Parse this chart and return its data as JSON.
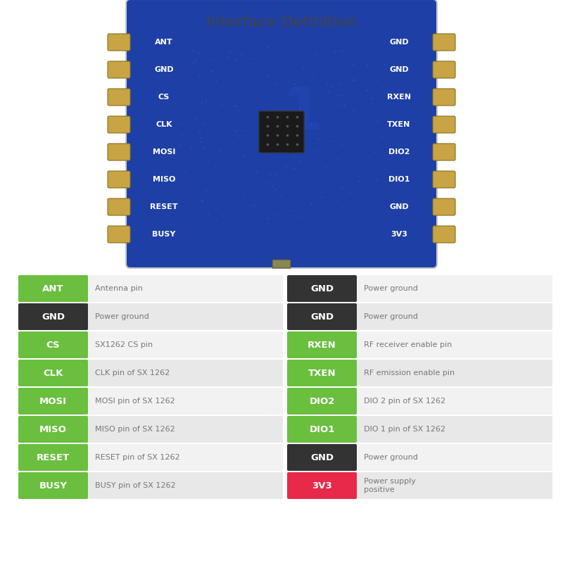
{
  "title": "Interface Definition",
  "title_fontsize": 16,
  "title_color": "#444444",
  "background_color": "#ffffff",
  "left_pins": [
    {
      "label": "ANT",
      "color": "#6abf3e",
      "text_color": "#ffffff",
      "desc": "Antenna pin"
    },
    {
      "label": "GND",
      "color": "#333333",
      "text_color": "#ffffff",
      "desc": "Power ground"
    },
    {
      "label": "CS",
      "color": "#6abf3e",
      "text_color": "#ffffff",
      "desc": "SX1262 CS pin"
    },
    {
      "label": "CLK",
      "color": "#6abf3e",
      "text_color": "#ffffff",
      "desc": "CLK pin of SX 1262"
    },
    {
      "label": "MOSI",
      "color": "#6abf3e",
      "text_color": "#ffffff",
      "desc": "MOSI pin of SX 1262"
    },
    {
      "label": "MISO",
      "color": "#6abf3e",
      "text_color": "#ffffff",
      "desc": "MISO pin of SX 1262"
    },
    {
      "label": "RESET",
      "color": "#6abf3e",
      "text_color": "#ffffff",
      "desc": "RESET pin of SX 1262"
    },
    {
      "label": "BUSY",
      "color": "#6abf3e",
      "text_color": "#ffffff",
      "desc": "BUSY pin of SX 1262"
    }
  ],
  "right_pins": [
    {
      "label": "GND",
      "color": "#333333",
      "text_color": "#ffffff",
      "desc": "Power ground"
    },
    {
      "label": "GND",
      "color": "#333333",
      "text_color": "#ffffff",
      "desc": "Power ground"
    },
    {
      "label": "RXEN",
      "color": "#6abf3e",
      "text_color": "#ffffff",
      "desc": "RF receiver enable pin"
    },
    {
      "label": "TXEN",
      "color": "#6abf3e",
      "text_color": "#ffffff",
      "desc": "RF emission enable pin"
    },
    {
      "label": "DIO2",
      "color": "#6abf3e",
      "text_color": "#ffffff",
      "desc": "DIO 2 pin of SX 1262"
    },
    {
      "label": "DIO1",
      "color": "#6abf3e",
      "text_color": "#ffffff",
      "desc": "DIO 1 pin of SX 1262"
    },
    {
      "label": "GND",
      "color": "#333333",
      "text_color": "#ffffff",
      "desc": "Power ground"
    },
    {
      "label": "3V3",
      "color": "#e8294a",
      "text_color": "#ffffff",
      "desc": "Power supply\npositive"
    }
  ],
  "pcb_pins_left": [
    "ANT",
    "GND",
    "CS",
    "CLK",
    "MOSI",
    "MISO",
    "RESET",
    "BUSY"
  ],
  "pcb_pins_right": [
    "GND",
    "GND",
    "RXEN",
    "TXEN",
    "DIO2",
    "DIO1",
    "GND",
    "3V3"
  ],
  "board_color": "#1e3fa5",
  "pad_color": "#c8a444",
  "pad_edge_color": "#8a6e20"
}
